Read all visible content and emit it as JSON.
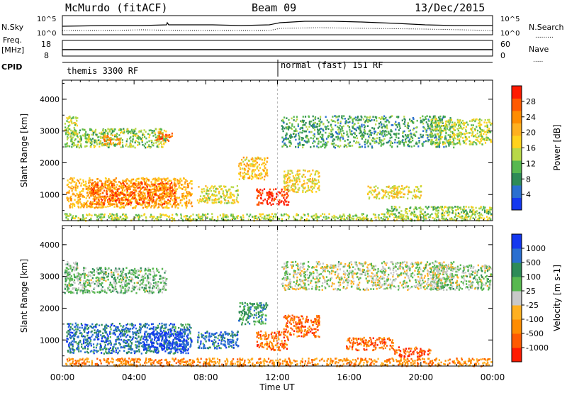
{
  "header": {
    "station": "McMurdo (fitACF)",
    "beam": "Beam 09",
    "date": "13/Dec/2015"
  },
  "top_panels": {
    "nsky_label": "N.Sky",
    "nsearch_label": "N.Search",
    "freq_label_1": "Freq.",
    "freq_label_2": "[MHz]",
    "nave_label": "Nave",
    "cpid_label": "CPID",
    "noise_ticks_left": [
      "10^5",
      "10^0"
    ],
    "noise_ticks_right": [
      "10^5",
      "10^0"
    ],
    "freq_ticks": [
      "18",
      "8"
    ],
    "nave_ticks": [
      "60",
      "0"
    ],
    "cpid_segments": [
      {
        "label": "themis 3300 RF",
        "start_hour": 0
      },
      {
        "label": "normal (fast) 151 RF",
        "start_hour": 12
      }
    ]
  },
  "chart_data": [
    {
      "type": "heatmap",
      "title": "Power",
      "xlabel": "Time UT",
      "ylabel": "Slant Range [km]",
      "xlim_hours": [
        0,
        24
      ],
      "ylim": [
        180,
        4600
      ],
      "x_tick_labels": [
        "00:00",
        "04:00",
        "08:00",
        "12:00",
        "16:00",
        "20:00",
        "00:00"
      ],
      "y_tick_labels": [
        "1000",
        "2000",
        "3000",
        "4000"
      ],
      "y_ticks": [
        1000,
        2000,
        3000,
        4000
      ],
      "colorbar": {
        "label": "Power [dB]",
        "range": [
          0,
          32
        ],
        "ticks": [
          "4",
          "8",
          "12",
          "16",
          "20",
          "24",
          "28"
        ],
        "colors": [
          "#1438f0",
          "#2a6fd0",
          "#2e8b57",
          "#58b850",
          "#b8d848",
          "#ffd21e",
          "#ffb020",
          "#ff8c00",
          "#ff5a00",
          "#ff1a00"
        ]
      },
      "scatter_regions": [
        {
          "t": [
            0.1,
            23.9
          ],
          "r": [
            200,
            420
          ],
          "level": 0.45
        },
        {
          "t": [
            0.2,
            7.2
          ],
          "r": [
            600,
            1550
          ],
          "level": 0.65
        },
        {
          "t": [
            1.5,
            6.3
          ],
          "r": [
            700,
            1400
          ],
          "level": 0.82
        },
        {
          "t": [
            0.1,
            5.8
          ],
          "r": [
            2500,
            3100
          ],
          "level": 0.4
        },
        {
          "t": [
            2.2,
            3.2
          ],
          "r": [
            2600,
            2900
          ],
          "level": 0.75
        },
        {
          "t": [
            5.2,
            6.1
          ],
          "r": [
            2700,
            3000
          ],
          "level": 0.8
        },
        {
          "t": [
            7.5,
            9.8
          ],
          "r": [
            750,
            1300
          ],
          "level": 0.5
        },
        {
          "t": [
            9.8,
            11.4
          ],
          "r": [
            1500,
            2200
          ],
          "level": 0.6
        },
        {
          "t": [
            10.8,
            12.6
          ],
          "r": [
            700,
            1200
          ],
          "level": 0.95
        },
        {
          "t": [
            12.3,
            14.3
          ],
          "r": [
            1100,
            1800
          ],
          "level": 0.55
        },
        {
          "t": [
            12.2,
            21.8
          ],
          "r": [
            2500,
            3500
          ],
          "level": 0.3
        },
        {
          "t": [
            17.0,
            20.0
          ],
          "r": [
            900,
            1300
          ],
          "level": 0.55
        },
        {
          "t": [
            20.5,
            23.9
          ],
          "r": [
            2600,
            3400
          ],
          "level": 0.45
        },
        {
          "t": [
            18.0,
            23.9
          ],
          "r": [
            400,
            650
          ],
          "level": 0.4
        },
        {
          "t": [
            0.1,
            0.8
          ],
          "r": [
            2900,
            3500
          ],
          "level": 0.5
        }
      ]
    },
    {
      "type": "heatmap",
      "title": "Velocity",
      "xlabel": "Time UT",
      "ylabel": "Slant Range [km]",
      "xlim_hours": [
        0,
        24
      ],
      "ylim": [
        180,
        4600
      ],
      "x_tick_labels": [
        "00:00",
        "04:00",
        "08:00",
        "12:00",
        "16:00",
        "20:00",
        "00:00"
      ],
      "y_tick_labels": [
        "1000",
        "2000",
        "3000",
        "4000"
      ],
      "y_ticks": [
        1000,
        2000,
        3000,
        4000
      ],
      "colorbar": {
        "label": "Velocity [m s-1]",
        "ticks": [
          "1000",
          "500",
          "100",
          "25",
          "-25",
          "-100",
          "-500",
          "-1000"
        ],
        "colors": [
          "#1438f0",
          "#2a6fd0",
          "#2e8b57",
          "#58b850",
          "#c8c8c8",
          "#ffb020",
          "#ff8c00",
          "#ff5a00",
          "#ff1a00"
        ]
      },
      "scatter_regions": [
        {
          "t": [
            0.1,
            23.9
          ],
          "r": [
            200,
            450
          ],
          "level": 0.72
        },
        {
          "t": [
            0.2,
            7.2
          ],
          "r": [
            600,
            1550
          ],
          "level": 0.2
        },
        {
          "t": [
            4.5,
            7.0
          ],
          "r": [
            700,
            1300
          ],
          "level": 0.05
        },
        {
          "t": [
            0.1,
            5.8
          ],
          "r": [
            2500,
            3300
          ],
          "level": 0.42
        },
        {
          "t": [
            7.5,
            9.8
          ],
          "r": [
            750,
            1300
          ],
          "level": 0.2
        },
        {
          "t": [
            9.8,
            11.4
          ],
          "r": [
            1500,
            2200
          ],
          "level": 0.3
        },
        {
          "t": [
            10.8,
            12.6
          ],
          "r": [
            700,
            1300
          ],
          "level": 0.78
        },
        {
          "t": [
            12.3,
            14.3
          ],
          "r": [
            1100,
            1800
          ],
          "level": 0.8
        },
        {
          "t": [
            12.2,
            21.8
          ],
          "r": [
            2600,
            3500
          ],
          "level": 0.48
        },
        {
          "t": [
            15.8,
            18.5
          ],
          "r": [
            700,
            1100
          ],
          "level": 0.8
        },
        {
          "t": [
            18.5,
            20.5
          ],
          "r": [
            500,
            800
          ],
          "level": 0.85
        },
        {
          "t": [
            20.5,
            23.9
          ],
          "r": [
            2600,
            3400
          ],
          "level": 0.45
        },
        {
          "t": [
            0.1,
            0.8
          ],
          "r": [
            2900,
            3500
          ],
          "level": 0.4
        }
      ]
    }
  ]
}
